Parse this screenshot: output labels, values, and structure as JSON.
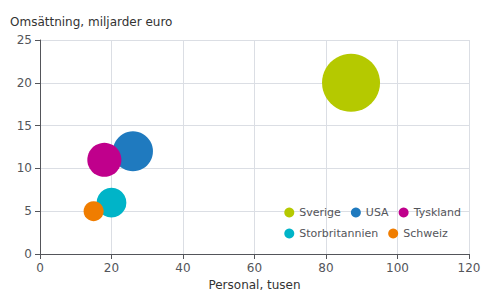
{
  "chart_data": {
    "type": "scatter",
    "xlabel": "Personal, tusen",
    "ylabel": "Omsättning, miljarder euro",
    "series": [
      {
        "name": "Sverige",
        "color": "#b5c900",
        "x": [
          87
        ],
        "y": [
          20
        ],
        "sizes": [
          1015
        ]
      },
      {
        "name": "USA",
        "color": "#1f7abf",
        "x": [
          26
        ],
        "y": [
          12
        ],
        "sizes": [
          483
        ]
      },
      {
        "name": "Tyskland",
        "color": "#c0008c",
        "x": [
          18
        ],
        "y": [
          11
        ],
        "sizes": [
          350
        ]
      },
      {
        "name": "Storbritannien",
        "color": "#00b4c8",
        "x": [
          20
        ],
        "y": [
          6
        ],
        "sizes": [
          267
        ]
      },
      {
        "name": "Schweiz",
        "color": "#f07d00",
        "x": [
          15
        ],
        "y": [
          5
        ],
        "sizes": [
          121
        ]
      }
    ],
    "data_labels": true,
    "xlim": [
      0,
      120
    ],
    "ylim": [
      0,
      25
    ],
    "xticks": [
      0,
      20,
      40,
      60,
      80,
      100,
      120
    ],
    "yticks": [
      0,
      5,
      10,
      15,
      20,
      25
    ],
    "grid": true,
    "legend": "lower right"
  }
}
